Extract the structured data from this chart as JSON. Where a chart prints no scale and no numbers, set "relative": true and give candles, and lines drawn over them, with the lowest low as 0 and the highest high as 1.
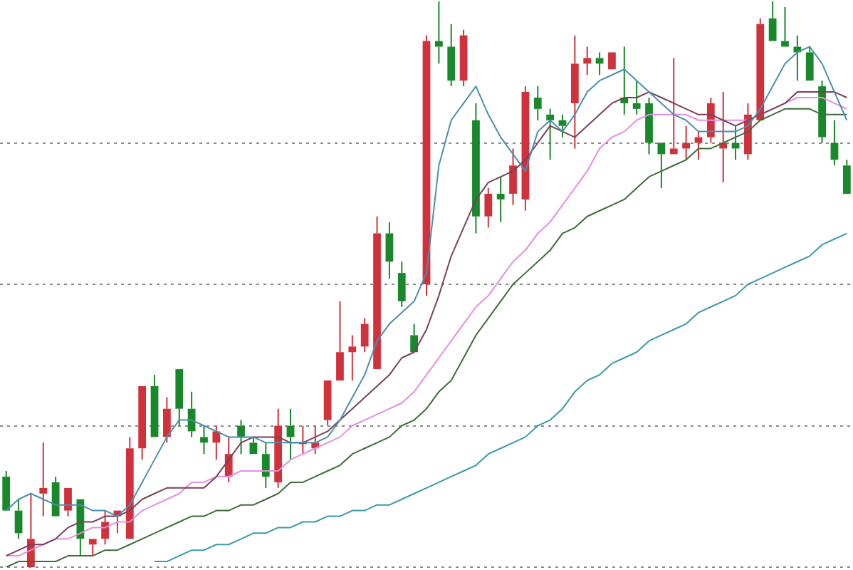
{
  "chart_data": {
    "type": "candlestick",
    "relative": true,
    "grid": "y",
    "categories": [
      null,
      null,
      null,
      null,
      null,
      null,
      null,
      null,
      null,
      null,
      null,
      null,
      null,
      null,
      null,
      null,
      null,
      null,
      null,
      null,
      null,
      null,
      null,
      null,
      null,
      null,
      null,
      null,
      null,
      null,
      null,
      null,
      null,
      null,
      null,
      null,
      null,
      null,
      null,
      null,
      null,
      null,
      null,
      null,
      null,
      null,
      null,
      null,
      null,
      null,
      null,
      null,
      null,
      null,
      null,
      null,
      null,
      null,
      null,
      null,
      null,
      null,
      null,
      null,
      null,
      null,
      null,
      null,
      null
    ],
    "ohlc": [
      [
        0.16,
        0.17,
        0.1,
        0.1
      ],
      [
        0.1,
        0.12,
        0.05,
        0.06
      ],
      [
        0.0,
        0.13,
        0.0,
        0.05
      ],
      [
        0.13,
        0.22,
        0.09,
        0.14
      ],
      [
        0.15,
        0.16,
        0.09,
        0.09
      ],
      [
        0.1,
        0.14,
        0.09,
        0.14
      ],
      [
        0.12,
        0.12,
        0.02,
        0.05
      ],
      [
        0.04,
        0.05,
        0.02,
        0.05
      ],
      [
        0.05,
        0.1,
        0.04,
        0.08
      ],
      [
        0.09,
        0.1,
        0.06,
        0.1
      ],
      [
        0.05,
        0.23,
        0.05,
        0.21
      ],
      [
        0.21,
        0.32,
        0.19,
        0.32
      ],
      [
        0.32,
        0.34,
        0.23,
        0.23
      ],
      [
        0.23,
        0.3,
        0.22,
        0.28
      ],
      [
        0.35,
        0.35,
        0.25,
        0.28
      ],
      [
        0.28,
        0.31,
        0.23,
        0.24
      ],
      [
        0.23,
        0.25,
        0.2,
        0.22
      ],
      [
        0.22,
        0.25,
        0.19,
        0.24
      ],
      [
        0.16,
        0.23,
        0.15,
        0.2
      ],
      [
        0.25,
        0.26,
        0.2,
        0.23
      ],
      [
        0.22,
        0.23,
        0.2,
        0.2
      ],
      [
        0.2,
        0.22,
        0.14,
        0.16
      ],
      [
        0.15,
        0.28,
        0.14,
        0.25
      ],
      [
        0.25,
        0.28,
        0.19,
        0.23
      ],
      [
        0.22,
        0.25,
        0.2,
        0.22
      ],
      [
        0.21,
        0.25,
        0.2,
        0.22
      ],
      [
        0.26,
        0.33,
        0.25,
        0.33
      ],
      [
        0.33,
        0.47,
        0.33,
        0.38
      ],
      [
        0.38,
        0.41,
        0.33,
        0.39
      ],
      [
        0.39,
        0.44,
        0.38,
        0.43
      ],
      [
        0.35,
        0.62,
        0.35,
        0.59
      ],
      [
        0.59,
        0.61,
        0.51,
        0.54
      ],
      [
        0.52,
        0.54,
        0.46,
        0.47
      ],
      [
        0.41,
        0.43,
        0.38,
        0.38
      ],
      [
        0.5,
        0.94,
        0.48,
        0.93
      ],
      [
        0.93,
        1.0,
        0.89,
        0.92
      ],
      [
        0.92,
        0.96,
        0.85,
        0.86
      ],
      [
        0.86,
        0.95,
        0.85,
        0.94
      ],
      [
        0.79,
        0.82,
        0.59,
        0.62
      ],
      [
        0.62,
        0.67,
        0.6,
        0.66
      ],
      [
        0.66,
        0.69,
        0.61,
        0.65
      ],
      [
        0.66,
        0.74,
        0.64,
        0.71
      ],
      [
        0.65,
        0.85,
        0.63,
        0.84
      ],
      [
        0.83,
        0.85,
        0.79,
        0.81
      ],
      [
        0.8,
        0.81,
        0.72,
        0.79
      ],
      [
        0.79,
        0.8,
        0.76,
        0.78
      ],
      [
        0.82,
        0.94,
        0.74,
        0.89
      ],
      [
        0.89,
        0.92,
        0.87,
        0.9
      ],
      [
        0.9,
        0.91,
        0.87,
        0.89
      ],
      [
        0.88,
        0.91,
        0.88,
        0.91
      ],
      [
        0.83,
        0.92,
        0.8,
        0.82
      ],
      [
        0.82,
        0.86,
        0.8,
        0.81
      ],
      [
        0.82,
        0.83,
        0.73,
        0.75
      ],
      [
        0.75,
        0.75,
        0.67,
        0.73
      ],
      [
        0.73,
        0.9,
        0.73,
        0.74
      ],
      [
        0.74,
        0.78,
        0.72,
        0.75
      ],
      [
        0.75,
        0.77,
        0.72,
        0.76
      ],
      [
        0.76,
        0.83,
        0.75,
        0.82
      ],
      [
        0.74,
        0.84,
        0.68,
        0.75
      ],
      [
        0.75,
        0.78,
        0.72,
        0.74
      ],
      [
        0.73,
        0.82,
        0.72,
        0.8
      ],
      [
        0.79,
        0.97,
        0.79,
        0.96
      ],
      [
        0.97,
        1.0,
        0.93,
        0.93
      ],
      [
        0.93,
        0.99,
        0.92,
        0.92
      ],
      [
        0.92,
        0.94,
        0.86,
        0.91
      ],
      [
        0.91,
        0.92,
        0.86,
        0.86
      ],
      [
        0.85,
        0.86,
        0.75,
        0.76
      ],
      [
        0.75,
        0.79,
        0.71,
        0.72
      ],
      [
        0.71,
        0.72,
        0.66,
        0.66
      ]
    ],
    "colors": [
      "#18882a",
      "#18882a",
      "#d0323c",
      "#d0323c",
      "#18882a",
      "#d0323c",
      "#18882a",
      "#d0323c",
      "#d0323c",
      "#d0323c",
      "#d0323c",
      "#d0323c",
      "#18882a",
      "#d0323c",
      "#18882a",
      "#18882a",
      "#18882a",
      "#d0323c",
      "#d0323c",
      "#18882a",
      "#18882a",
      "#18882a",
      "#d0323c",
      "#18882a",
      "#d0323c",
      "#d0323c",
      "#d0323c",
      "#d0323c",
      "#d0323c",
      "#d0323c",
      "#d0323c",
      "#18882a",
      "#18882a",
      "#18882a",
      "#d0323c",
      "#18882a",
      "#18882a",
      "#d0323c",
      "#18882a",
      "#d0323c",
      "#18882a",
      "#d0323c",
      "#d0323c",
      "#18882a",
      "#18882a",
      "#18882a",
      "#d0323c",
      "#d0323c",
      "#18882a",
      "#d0323c",
      "#18882a",
      "#18882a",
      "#18882a",
      "#18882a",
      "#d0323c",
      "#d0323c",
      "#d0323c",
      "#d0323c",
      "#d0323c",
      "#18882a",
      "#d0323c",
      "#d0323c",
      "#18882a",
      "#18882a",
      "#18882a",
      "#18882a",
      "#18882a",
      "#18882a",
      "#18882a"
    ],
    "series": [
      {
        "type": "line",
        "color": "#4a8fb0",
        "values": [
          0.1,
          0.12,
          0.13,
          0.12,
          0.11,
          0.11,
          0.11,
          0.1,
          0.1,
          0.09,
          0.11,
          0.15,
          0.19,
          0.23,
          0.26,
          0.26,
          0.25,
          0.24,
          0.23,
          0.23,
          0.23,
          0.22,
          0.22,
          0.22,
          0.22,
          0.22,
          0.23,
          0.26,
          0.3,
          0.34,
          0.4,
          0.43,
          0.45,
          0.47,
          0.52,
          0.71,
          0.79,
          0.82,
          0.85,
          0.8,
          0.76,
          0.73,
          0.7,
          0.77,
          0.79,
          0.77,
          0.8,
          0.84,
          0.86,
          0.87,
          0.88,
          0.86,
          0.84,
          0.82,
          0.8,
          0.79,
          0.77,
          0.77,
          0.77,
          0.77,
          0.78,
          0.81,
          0.85,
          0.89,
          0.91,
          0.92,
          0.89,
          0.84,
          0.79
        ]
      },
      {
        "type": "line",
        "color": "#7a3f5a",
        "values": [
          0.02,
          0.03,
          0.04,
          0.04,
          0.05,
          0.07,
          0.08,
          0.08,
          0.09,
          0.09,
          0.1,
          0.12,
          0.13,
          0.14,
          0.14,
          0.14,
          0.14,
          0.16,
          0.19,
          0.22,
          0.23,
          0.23,
          0.23,
          0.22,
          0.22,
          0.23,
          0.24,
          0.26,
          0.28,
          0.3,
          0.32,
          0.34,
          0.37,
          0.38,
          0.42,
          0.48,
          0.55,
          0.6,
          0.65,
          0.68,
          0.69,
          0.7,
          0.72,
          0.75,
          0.78,
          0.77,
          0.76,
          0.78,
          0.8,
          0.82,
          0.83,
          0.83,
          0.84,
          0.83,
          0.82,
          0.81,
          0.8,
          0.8,
          0.79,
          0.78,
          0.79,
          0.8,
          0.81,
          0.82,
          0.84,
          0.84,
          0.84,
          0.84,
          0.83
        ]
      },
      {
        "type": "line",
        "color": "#e48ee2",
        "values": [
          0.02,
          0.02,
          0.03,
          0.04,
          0.05,
          0.05,
          0.06,
          0.07,
          0.07,
          0.08,
          0.08,
          0.1,
          0.11,
          0.12,
          0.13,
          0.15,
          0.15,
          0.16,
          0.16,
          0.17,
          0.17,
          0.17,
          0.17,
          0.19,
          0.2,
          0.21,
          0.22,
          0.23,
          0.25,
          0.26,
          0.27,
          0.28,
          0.29,
          0.31,
          0.34,
          0.37,
          0.4,
          0.43,
          0.46,
          0.48,
          0.51,
          0.54,
          0.56,
          0.59,
          0.61,
          0.64,
          0.67,
          0.7,
          0.74,
          0.76,
          0.77,
          0.79,
          0.8,
          0.8,
          0.8,
          0.8,
          0.79,
          0.79,
          0.79,
          0.79,
          0.79,
          0.8,
          0.81,
          0.82,
          0.83,
          0.83,
          0.83,
          0.82,
          0.81
        ]
      },
      {
        "type": "line",
        "color": "#3e6b3a",
        "values": [
          0.0,
          0.01,
          0.01,
          0.01,
          0.01,
          0.02,
          0.02,
          0.02,
          0.03,
          0.03,
          0.04,
          0.05,
          0.06,
          0.07,
          0.08,
          0.09,
          0.09,
          0.1,
          0.1,
          0.11,
          0.11,
          0.12,
          0.13,
          0.15,
          0.15,
          0.16,
          0.17,
          0.18,
          0.2,
          0.21,
          0.22,
          0.23,
          0.25,
          0.26,
          0.28,
          0.31,
          0.33,
          0.37,
          0.41,
          0.44,
          0.47,
          0.5,
          0.52,
          0.54,
          0.56,
          0.59,
          0.6,
          0.62,
          0.63,
          0.64,
          0.65,
          0.67,
          0.69,
          0.7,
          0.71,
          0.72,
          0.74,
          0.74,
          0.75,
          0.76,
          0.77,
          0.79,
          0.8,
          0.81,
          0.81,
          0.81,
          0.8,
          0.8,
          0.8
        ]
      },
      {
        "type": "line",
        "color": "#3a9aa8",
        "values": [
          null,
          null,
          null,
          null,
          null,
          null,
          null,
          null,
          null,
          null,
          null,
          null,
          0.01,
          0.01,
          0.02,
          0.03,
          0.03,
          0.04,
          0.04,
          0.05,
          0.06,
          0.06,
          0.07,
          0.07,
          0.08,
          0.08,
          0.09,
          0.09,
          0.1,
          0.1,
          0.11,
          0.11,
          0.12,
          0.13,
          0.14,
          0.15,
          0.16,
          0.17,
          0.18,
          0.2,
          0.21,
          0.22,
          0.23,
          0.25,
          0.26,
          0.28,
          0.31,
          0.33,
          0.34,
          0.36,
          0.37,
          0.38,
          0.4,
          0.41,
          0.42,
          0.43,
          0.45,
          0.46,
          0.47,
          0.48,
          0.5,
          0.51,
          0.52,
          0.53,
          0.54,
          0.55,
          0.57,
          0.58,
          0.59
        ]
      }
    ]
  }
}
